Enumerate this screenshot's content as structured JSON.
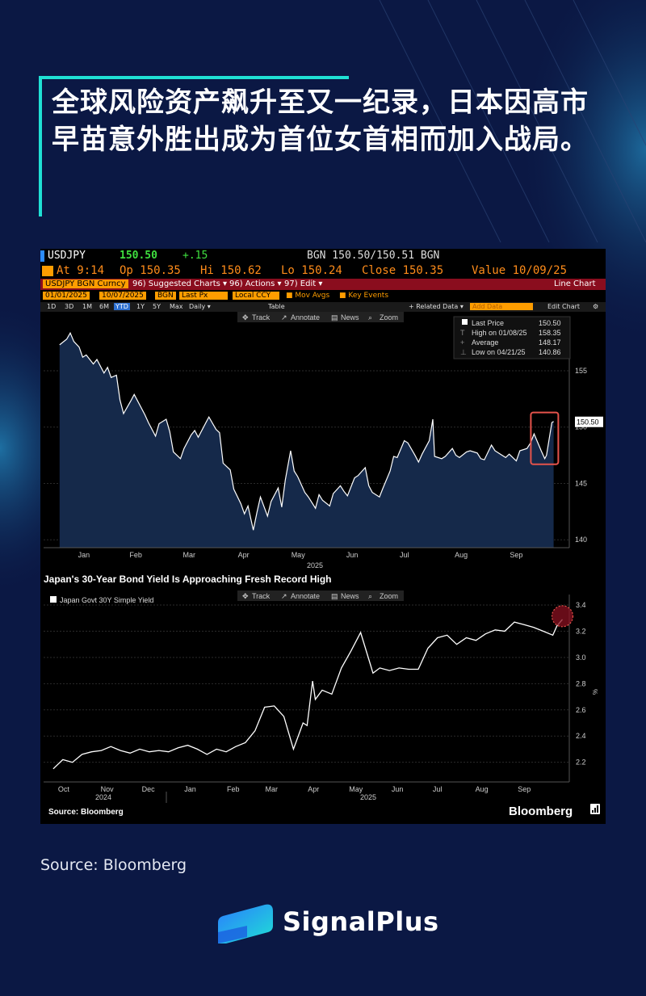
{
  "headline": "全球风险资产飙升至又一纪录，日本因高市早苗意外胜出成为首位女首相而加入战局。",
  "terminal": {
    "ticker": "USDJPY",
    "last": "150.50",
    "change": "+.15",
    "bid_ask": "BGN 150.50/150.51 BGN",
    "at_time": "At 9:14",
    "open": "Op 150.35",
    "high": "Hi 150.62",
    "low": "Lo 150.24",
    "close": "Close 150.35",
    "value": "Value 10/09/25",
    "security": "USDJPY BGN Curncy",
    "menu_suggested": "96) Suggested Charts ▾",
    "menu_actions": "96) Actions ▾",
    "menu_edit": "97) Edit ▾",
    "chart_type": "Line Chart",
    "start_date": "01/01/2025",
    "end_date": "10/07/2025",
    "source_field": "BGN",
    "price_field": "Last Px",
    "currency_field": "Local CCY",
    "mov_avgs": "Mov Avgs",
    "key_events": "Key Events",
    "periods": [
      "1D",
      "3D",
      "1M",
      "6M",
      "YTD",
      "1Y",
      "5Y",
      "Max"
    ],
    "frequency": "Daily ▾",
    "table": "Table",
    "related_data": "+ Related Data ▾",
    "add_data": "Add Data",
    "edit_chart": "Edit Chart",
    "toolbar": [
      "Track",
      "Annotate",
      "News",
      "Zoom"
    ]
  },
  "colors": {
    "background": "#0b1844",
    "accent": "#1fe0d4",
    "terminal": "#000000",
    "fill": "#15294a",
    "highlight": "#e5534b"
  },
  "chart_data": [
    {
      "type": "area",
      "title": "USDJPY",
      "x_ticks": [
        "Jan",
        "Feb",
        "Mar",
        "Apr",
        "May",
        "Jun",
        "Jul",
        "Aug",
        "Sep"
      ],
      "x_year": "2025",
      "y_ticks": [
        140,
        145,
        150,
        155
      ],
      "ylim": [
        139.3,
        159.8
      ],
      "legend": [
        {
          "label": "Last Price",
          "value": "150.50"
        },
        {
          "label": "High on 01/08/25",
          "value": "158.35"
        },
        {
          "label": "Average",
          "value": "148.17"
        },
        {
          "label": "Low on 04/21/25",
          "value": "140.86"
        }
      ],
      "last_label": "150.50",
      "x": [
        "2025-01-02",
        "2025-01-06",
        "2025-01-08",
        "2025-01-10",
        "2025-01-13",
        "2025-01-15",
        "2025-01-17",
        "2025-01-21",
        "2025-01-23",
        "2025-01-27",
        "2025-01-29",
        "2025-01-31",
        "2025-02-03",
        "2025-02-05",
        "2025-02-07",
        "2025-02-11",
        "2025-02-13",
        "2025-02-17",
        "2025-02-19",
        "2025-02-21",
        "2025-02-25",
        "2025-02-27",
        "2025-03-03",
        "2025-03-05",
        "2025-03-07",
        "2025-03-11",
        "2025-03-13",
        "2025-03-17",
        "2025-03-19",
        "2025-03-21",
        "2025-03-25",
        "2025-03-27",
        "2025-03-31",
        "2025-04-02",
        "2025-04-04",
        "2025-04-08",
        "2025-04-10",
        "2025-04-14",
        "2025-04-16",
        "2025-04-18",
        "2025-04-21",
        "2025-04-23",
        "2025-04-25",
        "2025-04-29",
        "2025-05-01",
        "2025-05-05",
        "2025-05-07",
        "2025-05-09",
        "2025-05-12",
        "2025-05-14",
        "2025-05-16",
        "2025-05-20",
        "2025-05-22",
        "2025-05-26",
        "2025-05-28",
        "2025-05-30",
        "2025-06-03",
        "2025-06-05",
        "2025-06-09",
        "2025-06-11",
        "2025-06-13",
        "2025-06-17",
        "2025-06-19",
        "2025-06-23",
        "2025-06-25",
        "2025-06-27",
        "2025-07-01",
        "2025-07-03",
        "2025-07-07",
        "2025-07-09",
        "2025-07-11",
        "2025-07-15",
        "2025-07-17",
        "2025-07-21",
        "2025-07-23",
        "2025-07-25",
        "2025-07-29",
        "2025-07-31",
        "2025-08-01",
        "2025-08-05",
        "2025-08-07",
        "2025-08-11",
        "2025-08-13",
        "2025-08-15",
        "2025-08-19",
        "2025-08-21",
        "2025-08-25",
        "2025-08-27",
        "2025-08-29",
        "2025-09-02",
        "2025-09-04",
        "2025-09-08",
        "2025-09-10",
        "2025-09-12",
        "2025-09-16",
        "2025-09-18",
        "2025-09-22",
        "2025-09-24",
        "2025-09-26",
        "2025-09-30",
        "2025-10-02",
        "2025-10-03",
        "2025-10-06",
        "2025-10-07"
      ],
      "y": [
        157.3,
        157.8,
        158.35,
        157.6,
        157.1,
        156.2,
        156.4,
        155.6,
        156.0,
        154.8,
        155.3,
        154.4,
        154.6,
        152.4,
        151.2,
        152.3,
        152.9,
        151.7,
        151.1,
        150.4,
        149.2,
        150.3,
        150.7,
        149.6,
        147.8,
        147.2,
        148.1,
        149.3,
        149.7,
        149.1,
        150.3,
        150.9,
        149.8,
        149.5,
        146.8,
        146.2,
        144.5,
        143.2,
        142.3,
        143.0,
        140.86,
        142.4,
        143.8,
        142.1,
        143.4,
        144.6,
        142.9,
        145.3,
        147.9,
        146.1,
        145.6,
        144.2,
        143.8,
        142.8,
        144.0,
        143.5,
        143.0,
        144.1,
        144.8,
        144.3,
        143.9,
        145.5,
        145.7,
        146.4,
        144.8,
        144.2,
        143.8,
        144.6,
        146.1,
        147.4,
        147.3,
        148.8,
        148.6,
        147.5,
        146.9,
        147.6,
        148.8,
        150.7,
        147.4,
        147.2,
        147.4,
        148.1,
        147.5,
        147.3,
        147.8,
        147.9,
        147.7,
        147.2,
        147.1,
        148.4,
        147.9,
        147.5,
        147.3,
        147.6,
        147.0,
        147.9,
        148.1,
        148.6,
        149.4,
        147.9,
        147.2,
        147.5,
        150.4,
        150.5
      ]
    },
    {
      "type": "line",
      "title": "Japan's 30-Year Bond Yield Is Approaching Fresh Record High",
      "legend": [
        "Japan Govt 30Y Simple Yield"
      ],
      "x_ticks": [
        "Oct",
        "Nov",
        "Dec",
        "Jan",
        "Feb",
        "Mar",
        "Apr",
        "May",
        "Jun",
        "Jul",
        "Aug",
        "Sep"
      ],
      "x_years": [
        "2024",
        "2025"
      ],
      "y_ticks": [
        2.2,
        2.4,
        2.6,
        2.8,
        3.0,
        3.2,
        3.4
      ],
      "ylim": [
        2.05,
        3.48
      ],
      "y_unit": "%",
      "x": [
        "2024-10-01",
        "2024-10-08",
        "2024-10-15",
        "2024-10-22",
        "2024-10-29",
        "2024-11-05",
        "2024-11-12",
        "2024-11-19",
        "2024-11-26",
        "2024-12-03",
        "2024-12-10",
        "2024-12-17",
        "2024-12-24",
        "2024-12-31",
        "2025-01-07",
        "2025-01-14",
        "2025-01-21",
        "2025-01-28",
        "2025-02-04",
        "2025-02-11",
        "2025-02-18",
        "2025-02-25",
        "2025-03-04",
        "2025-03-11",
        "2025-03-18",
        "2025-03-25",
        "2025-04-01",
        "2025-04-04",
        "2025-04-08",
        "2025-04-10",
        "2025-04-15",
        "2025-04-22",
        "2025-04-29",
        "2025-05-06",
        "2025-05-13",
        "2025-05-20",
        "2025-05-22",
        "2025-05-27",
        "2025-06-03",
        "2025-06-10",
        "2025-06-17",
        "2025-06-24",
        "2025-07-01",
        "2025-07-08",
        "2025-07-15",
        "2025-07-22",
        "2025-07-29",
        "2025-08-05",
        "2025-08-12",
        "2025-08-19",
        "2025-08-26",
        "2025-09-02",
        "2025-09-09",
        "2025-09-16",
        "2025-09-23",
        "2025-09-30",
        "2025-10-03",
        "2025-10-07"
      ],
      "y": [
        2.15,
        2.22,
        2.2,
        2.26,
        2.28,
        2.29,
        2.32,
        2.29,
        2.27,
        2.3,
        2.28,
        2.29,
        2.28,
        2.31,
        2.33,
        2.3,
        2.26,
        2.3,
        2.28,
        2.32,
        2.35,
        2.44,
        2.62,
        2.63,
        2.55,
        2.3,
        2.5,
        2.48,
        2.82,
        2.68,
        2.75,
        2.72,
        2.92,
        3.05,
        3.19,
        2.95,
        2.88,
        2.92,
        2.9,
        2.92,
        2.91,
        2.91,
        3.07,
        3.15,
        3.17,
        3.1,
        3.15,
        3.13,
        3.18,
        3.21,
        3.2,
        3.27,
        3.25,
        3.23,
        3.2,
        3.17,
        3.24,
        3.29
      ]
    }
  ],
  "chart_source": "Source: Bloomberg",
  "bloomberg": "Bloomberg",
  "source_text": "Source: Bloomberg",
  "brand": "SignalPlus"
}
